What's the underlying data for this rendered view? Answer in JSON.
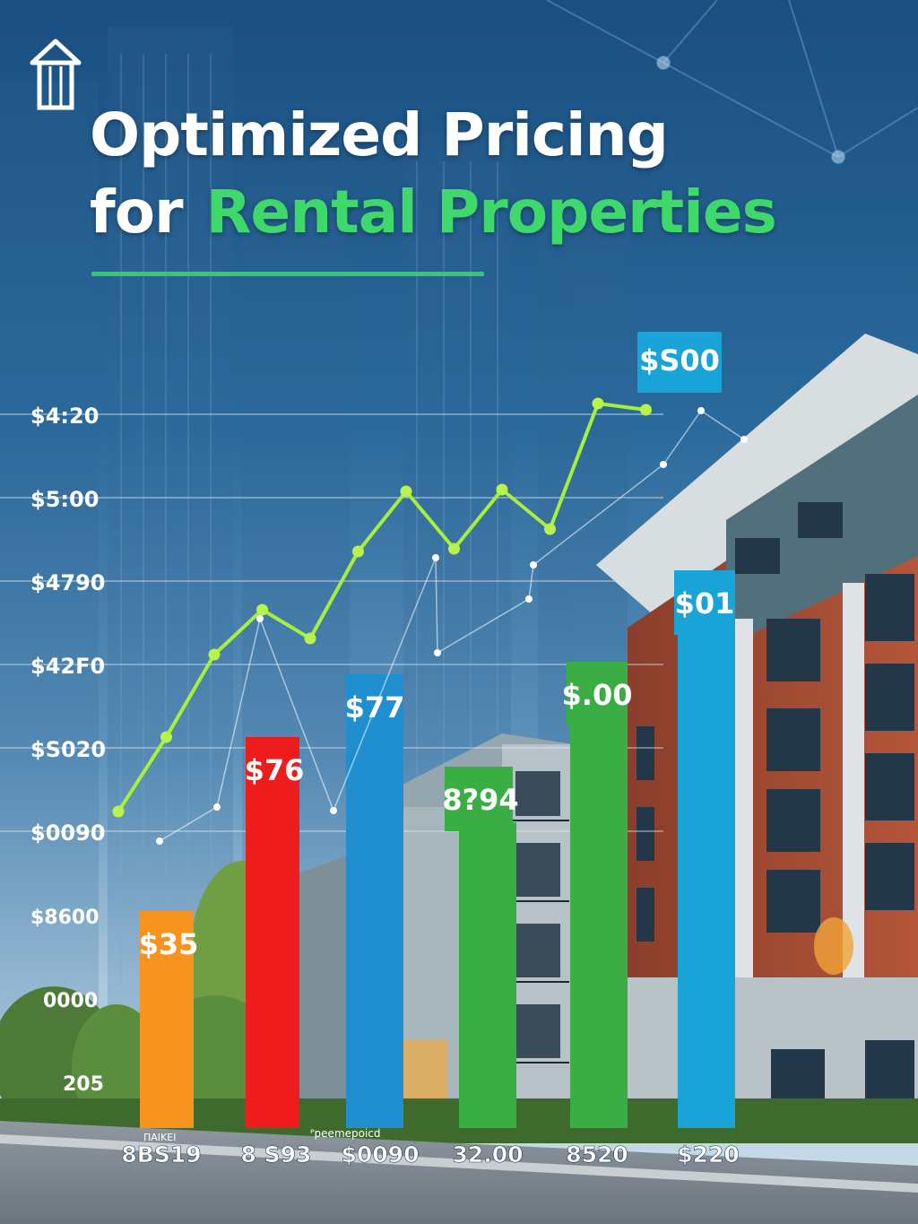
{
  "header": {
    "title_line1": "Optimized Pricing",
    "title_line2_a": "for",
    "title_line2_b": "Rental Properties"
  },
  "colors": {
    "background_top": "#1d5a8c",
    "title": "#ffffff",
    "accent_green": "#3fd86a",
    "trend_line": "#a6ef3a"
  },
  "icons": {
    "logo": "building-logo-icon"
  },
  "chart_data": {
    "type": "bar",
    "title": "",
    "xlabel": "",
    "ylabel": "",
    "y_tick_labels": [
      "$4:20",
      "$5:00",
      "$4790",
      "$42F0",
      "$S020",
      "$0090",
      "$8600",
      "0000",
      "205"
    ],
    "categories": [
      "8BS19",
      "8 S93",
      "$0090",
      "32.00",
      "8520",
      "$220"
    ],
    "bars": [
      {
        "label": "$35",
        "value": 35,
        "color": "#f7931e"
      },
      {
        "label": "$76",
        "value": 76,
        "color": "#ee1c1c"
      },
      {
        "label": "$77",
        "value": 77,
        "color": "#1f8fd0"
      },
      {
        "label": "8?94",
        "value": 66,
        "color": "#3aae44"
      },
      {
        "label": "$.00",
        "value": 86,
        "color": "#3aae44"
      },
      {
        "label": "$01",
        "value": 100,
        "color": "#1aa3d6"
      }
    ],
    "axis_note_left": "ΠΑΙΚΕΙ",
    "axis_note_mid": "ᴾpeemepoicd",
    "callout_label": "$S00",
    "trend_line": {
      "x": [
        0,
        0.5,
        1,
        1.5,
        2,
        2.5,
        3,
        3.5,
        4,
        4.5,
        5,
        5.5
      ],
      "y": [
        6.4,
        6.8,
        7.6,
        8.0,
        7.8,
        8.5,
        9.0,
        8.6,
        9.0,
        8.7,
        9.8,
        9.7
      ]
    },
    "ylim": [
      0,
      10
    ],
    "grid": true,
    "legend": "none"
  }
}
